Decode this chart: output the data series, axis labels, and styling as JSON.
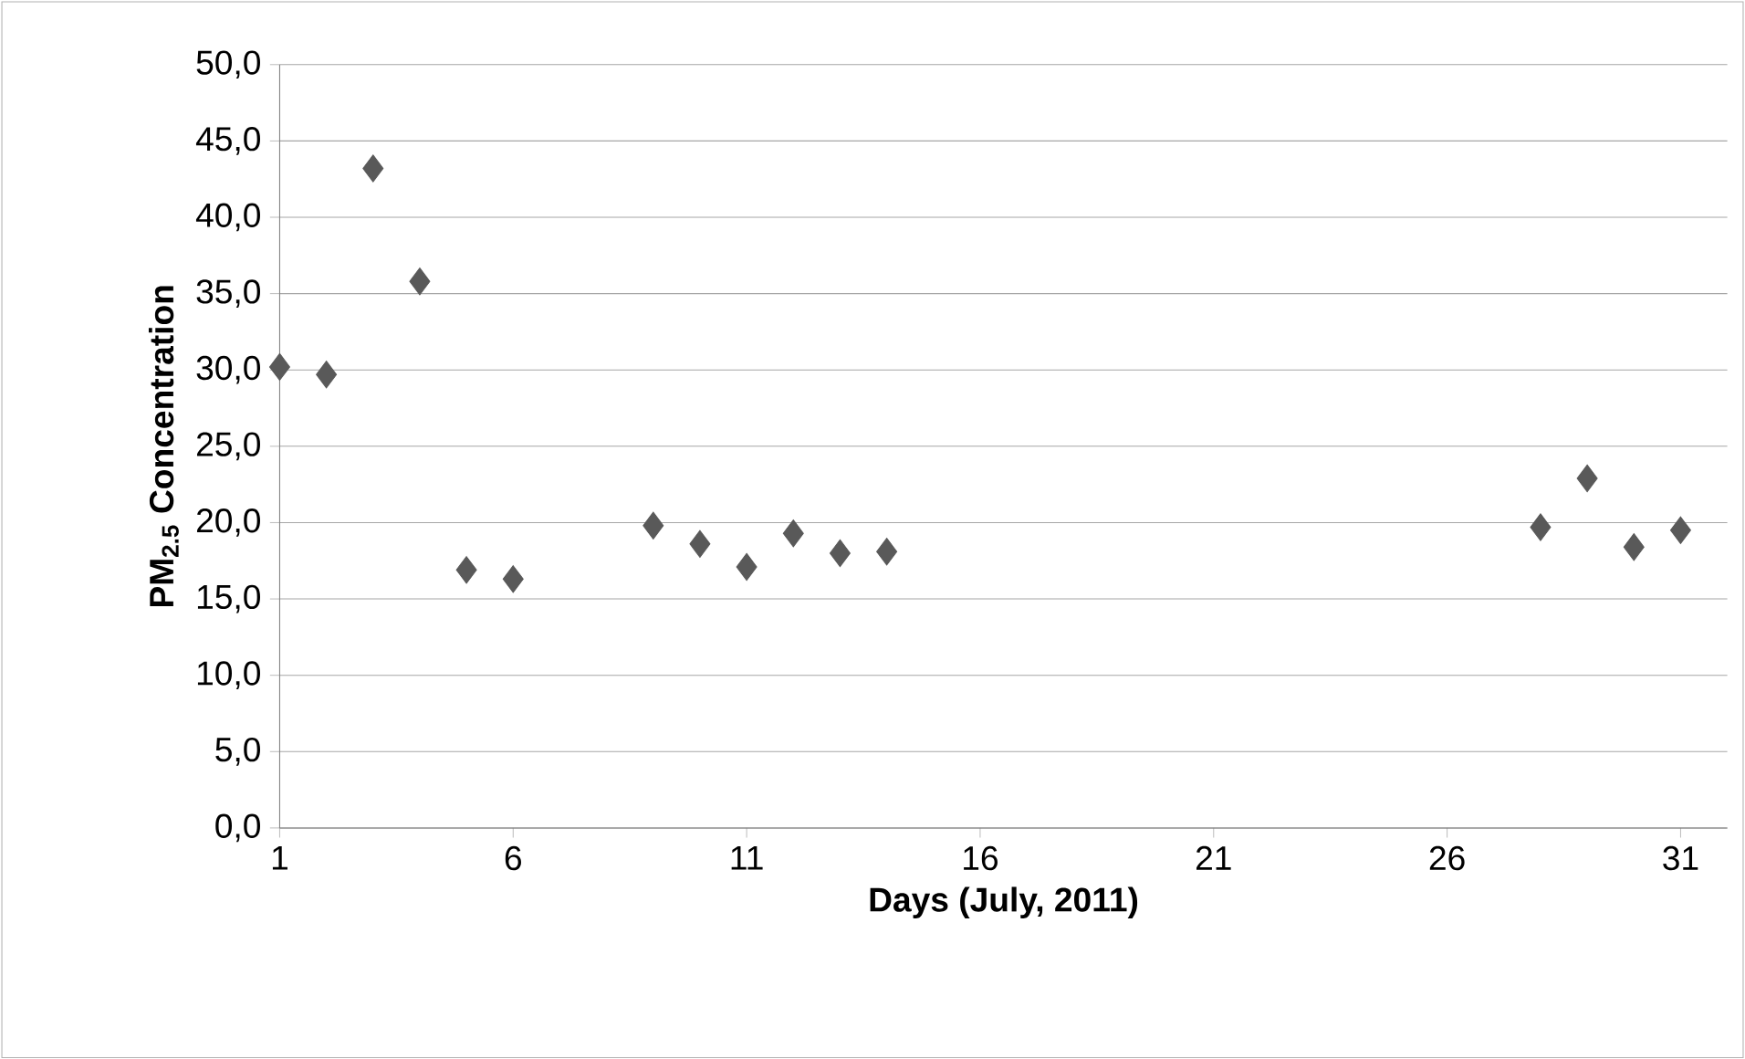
{
  "chart_data": {
    "type": "scatter",
    "xlabel": "Days (July, 2011)",
    "ylabel": "PM$_{2.5}$ Concentration",
    "x": [
      1,
      2,
      3,
      4,
      5,
      6,
      9,
      10,
      11,
      12,
      13,
      14,
      28,
      29,
      30,
      31
    ],
    "values": [
      30.2,
      29.7,
      43.2,
      35.8,
      16.9,
      16.3,
      19.8,
      18.6,
      17.1,
      19.3,
      18.0,
      18.1,
      19.7,
      22.9,
      18.4,
      19.5
    ],
    "color": "#595959",
    "marker": "diamond",
    "grid": "y",
    "xlim": [
      1,
      32
    ],
    "xticks": [
      1,
      6,
      11,
      16,
      21,
      26,
      31
    ],
    "ylim": [
      0,
      50
    ],
    "yticks": [
      {
        "value": 0,
        "label": "0,0"
      },
      {
        "value": 5,
        "label": "5,0"
      },
      {
        "value": 10,
        "label": "10,0"
      },
      {
        "value": 15,
        "label": "15,0"
      },
      {
        "value": 20,
        "label": "20,0"
      },
      {
        "value": 25,
        "label": "25,0"
      },
      {
        "value": 30,
        "label": "30,0"
      },
      {
        "value": 35,
        "label": "35,0"
      },
      {
        "value": 40,
        "label": "40,0"
      },
      {
        "value": 45,
        "label": "45,0"
      },
      {
        "value": 50,
        "label": "50,0"
      }
    ]
  }
}
